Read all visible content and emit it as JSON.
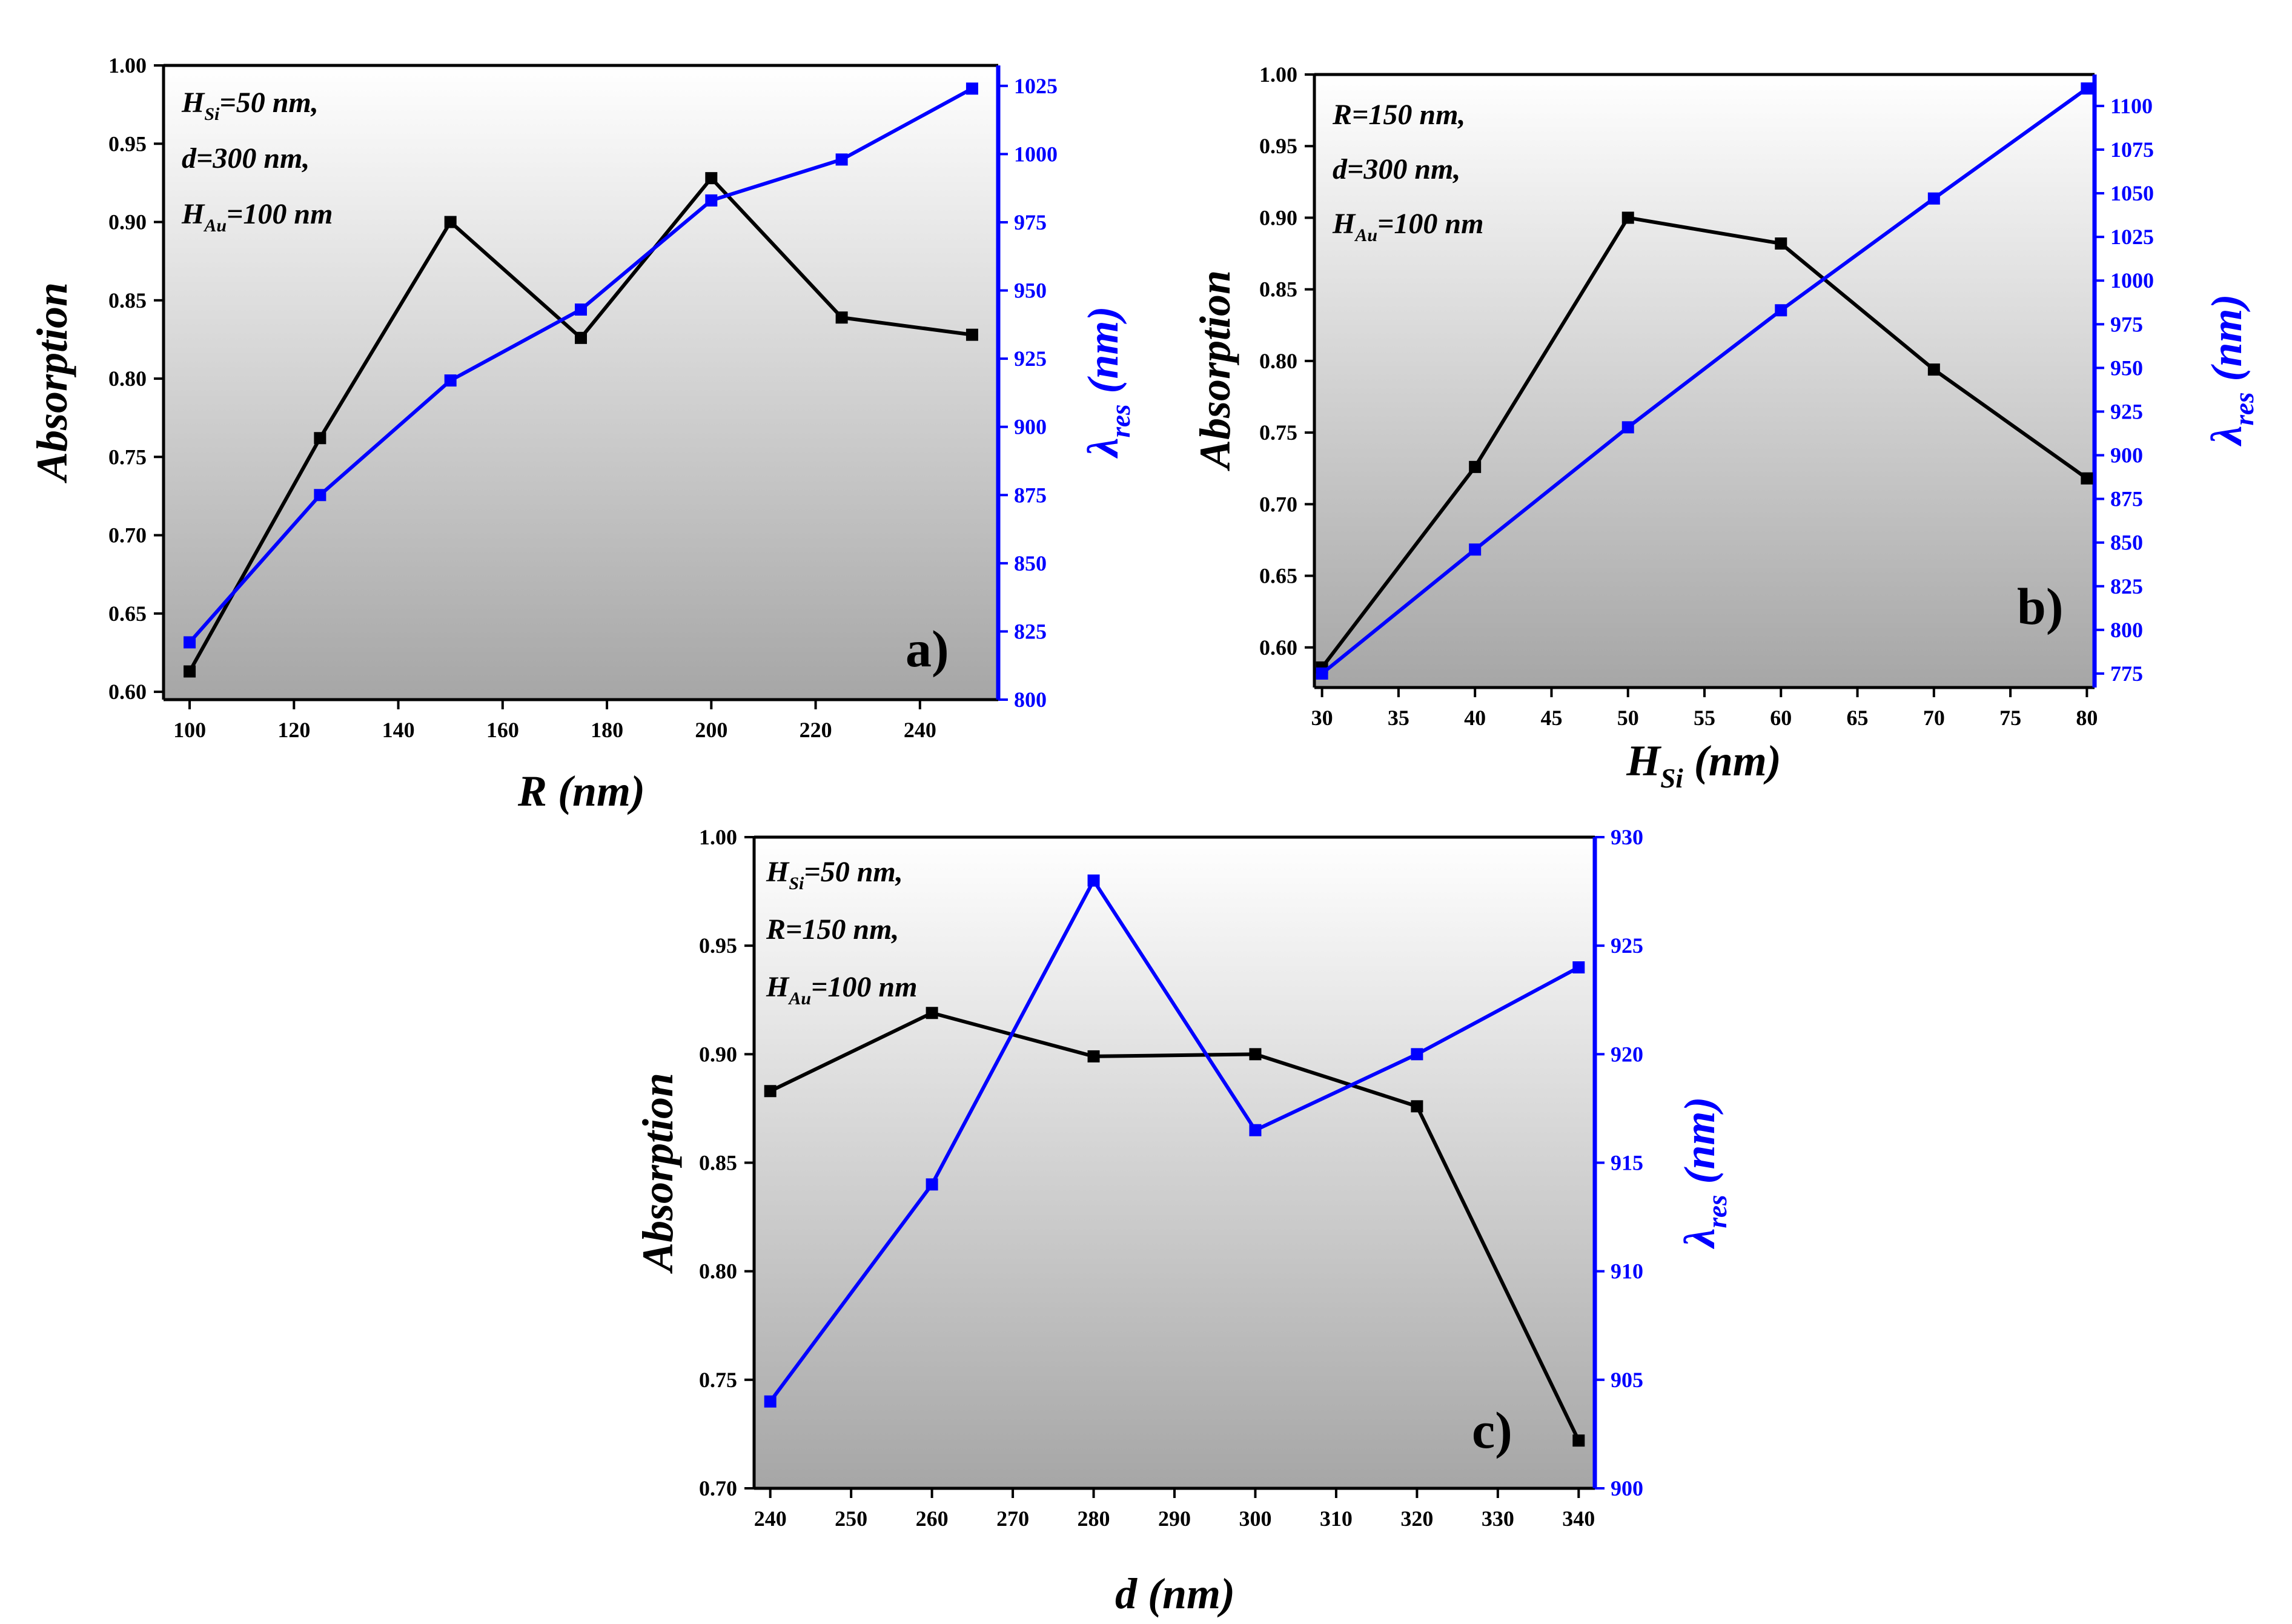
{
  "chart_data": [
    {
      "type": "line",
      "panel_label": "a)",
      "annotation": [
        {
          "main": "H",
          "sub": "Si",
          "rest": "=50 nm,"
        },
        {
          "main": "d=300 nm,",
          "sub": "",
          "rest": ""
        },
        {
          "main": "H",
          "sub": "Au",
          "rest": "=100 nm"
        }
      ],
      "xlabel": {
        "main": "R (nm)",
        "sub": "",
        "rest": ""
      },
      "ylabel_left": "Absorption",
      "ylabel_right": {
        "main": "λ",
        "sub": "res",
        "rest": " (nm)"
      },
      "x": [
        100,
        125,
        150,
        175,
        200,
        225,
        250
      ],
      "xlim": [
        95,
        255
      ],
      "xticks": [
        100,
        120,
        140,
        160,
        180,
        200,
        220,
        240
      ],
      "ylim_left": [
        0.595,
        1.0
      ],
      "yticks_left": [
        "0.60",
        "0.65",
        "0.70",
        "0.75",
        "0.80",
        "0.85",
        "0.90",
        "0.95",
        "1.00"
      ],
      "ylim_right": [
        800,
        1032.5
      ],
      "yticks_right": [
        800,
        825,
        850,
        875,
        900,
        925,
        950,
        975,
        1000,
        1025
      ],
      "series": [
        {
          "name": "Absorption",
          "axis": "left",
          "color": "#000000",
          "values": [
            0.613,
            0.762,
            0.9,
            0.826,
            0.928,
            0.839,
            0.828
          ]
        },
        {
          "name": "λres",
          "axis": "right",
          "color": "#0000ff",
          "values": [
            821,
            875,
            917,
            943,
            983,
            998,
            1024
          ]
        }
      ]
    },
    {
      "type": "line",
      "panel_label": "b)",
      "annotation": [
        {
          "main": "R=150 nm,",
          "sub": "",
          "rest": ""
        },
        {
          "main": "d=300 nm,",
          "sub": "",
          "rest": ""
        },
        {
          "main": "H",
          "sub": "Au",
          "rest": "=100 nm"
        }
      ],
      "xlabel": {
        "main": "H",
        "sub": "Si",
        "rest": " (nm)"
      },
      "ylabel_left": "Absorption",
      "ylabel_right": {
        "main": "λ",
        "sub": "res",
        "rest": " (nm)"
      },
      "x": [
        30,
        40,
        50,
        60,
        70,
        80
      ],
      "xlim": [
        29.5,
        80.5
      ],
      "xticks": [
        30,
        35,
        40,
        45,
        50,
        55,
        60,
        65,
        70,
        75,
        80
      ],
      "ylim_left": [
        0.572,
        1.0
      ],
      "yticks_left": [
        "0.60",
        "0.65",
        "0.70",
        "0.75",
        "0.80",
        "0.85",
        "0.90",
        "0.95",
        "1.00"
      ],
      "ylim_right": [
        767,
        1118
      ],
      "yticks_right": [
        775,
        800,
        825,
        850,
        875,
        900,
        925,
        950,
        975,
        1000,
        1025,
        1050,
        1075,
        1100
      ],
      "series": [
        {
          "name": "Absorption",
          "axis": "left",
          "color": "#000000",
          "values": [
            0.586,
            0.726,
            0.9,
            0.882,
            0.794,
            0.718
          ]
        },
        {
          "name": "λres",
          "axis": "right",
          "color": "#0000ff",
          "values": [
            775,
            846,
            916,
            983,
            1047,
            1110
          ]
        }
      ]
    },
    {
      "type": "line",
      "panel_label": "c)",
      "annotation": [
        {
          "main": "H",
          "sub": "Si",
          "rest": "=50 nm,"
        },
        {
          "main": "R=150 nm,",
          "sub": "",
          "rest": ""
        },
        {
          "main": "H",
          "sub": "Au",
          "rest": "=100 nm"
        }
      ],
      "xlabel": {
        "main": "d (nm)",
        "sub": "",
        "rest": ""
      },
      "ylabel_left": "Absorption",
      "ylabel_right": {
        "main": "λ",
        "sub": "res",
        "rest": " (nm)"
      },
      "x": [
        240,
        260,
        280,
        300,
        320,
        340
      ],
      "xlim": [
        238,
        342
      ],
      "xticks": [
        240,
        250,
        260,
        270,
        280,
        290,
        300,
        310,
        320,
        330,
        340
      ],
      "ylim_left": [
        0.7,
        1.0
      ],
      "yticks_left": [
        "0.70",
        "0.75",
        "0.80",
        "0.85",
        "0.90",
        "0.95",
        "1.00"
      ],
      "ylim_right": [
        900,
        930
      ],
      "yticks_right": [
        900,
        905,
        910,
        915,
        920,
        925,
        930
      ],
      "series": [
        {
          "name": "Absorption",
          "axis": "left",
          "color": "#000000",
          "values": [
            0.883,
            0.919,
            0.899,
            0.9,
            0.876,
            0.722
          ]
        },
        {
          "name": "λres",
          "axis": "right",
          "color": "#0000ff",
          "values": [
            904,
            914,
            928,
            916.5,
            920,
            924
          ]
        }
      ]
    }
  ]
}
